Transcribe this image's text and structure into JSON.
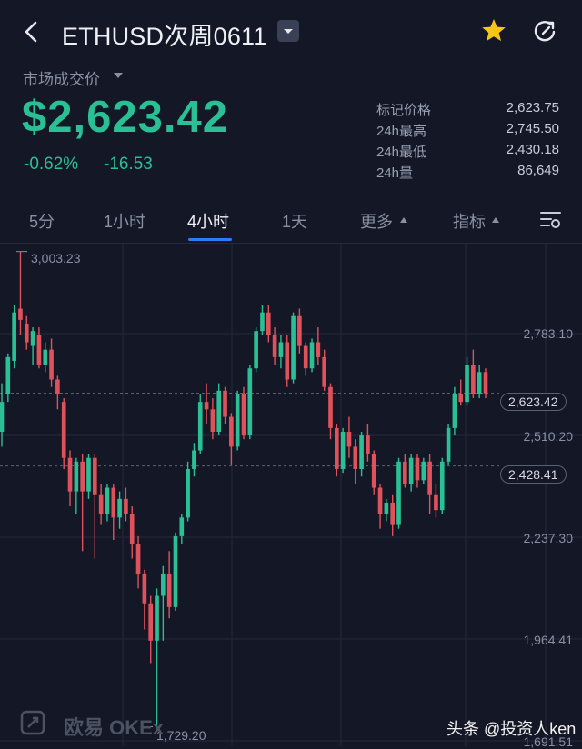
{
  "header": {
    "title": "ETHUSD次周0611",
    "price_label": "市场成交价",
    "last_price": "$2,623.42",
    "change_pct": "-0.62%",
    "change_abs": "-16.53"
  },
  "stats": [
    {
      "label": "标记价格",
      "value": "2,623.75"
    },
    {
      "label": "24h最高",
      "value": "2,745.50"
    },
    {
      "label": "24h最低",
      "value": "2,430.18"
    },
    {
      "label": "24h量",
      "value": "86,649"
    }
  ],
  "tabs": [
    {
      "label": "5分",
      "active": false
    },
    {
      "label": "1小时",
      "active": false
    },
    {
      "label": "4小时",
      "active": true
    },
    {
      "label": "1天",
      "active": false
    },
    {
      "label": "更多",
      "active": false
    },
    {
      "label": "指标",
      "active": false
    }
  ],
  "colors": {
    "up": "#2bbf95",
    "down": "#e0525b",
    "background": "#141826",
    "accent": "#2d7cf6",
    "star": "#f5c518"
  },
  "icons": [
    "back-arrow-icon",
    "dropdown-caret-icon",
    "star-icon",
    "refresh-icon",
    "chart-settings-icon",
    "okex-logo-icon"
  ],
  "chart_data": {
    "type": "candlestick",
    "y_ticks": [
      "2,783.10",
      "2,510.20",
      "2,237.30",
      "1,964.41",
      "1,691.51"
    ],
    "y_tick_values": [
      2783.1,
      2510.2,
      2237.3,
      1964.41,
      1691.51
    ],
    "high_marker": "3,003.23",
    "low_marker": "1,729.20",
    "last_price_tag": "2,623.42",
    "reference_tag": "2,428.41",
    "candles": [
      [
        2520,
        2600,
        2480,
        2650
      ],
      [
        2620,
        2720,
        2600,
        2730
      ],
      [
        2710,
        2840,
        2690,
        2860
      ],
      [
        2850,
        2820,
        2780,
        3003
      ],
      [
        2810,
        2760,
        2740,
        2830
      ],
      [
        2750,
        2790,
        2700,
        2800
      ],
      [
        2780,
        2700,
        2690,
        2800
      ],
      [
        2700,
        2740,
        2680,
        2760
      ],
      [
        2740,
        2660,
        2640,
        2770
      ],
      [
        2660,
        2620,
        2580,
        2670
      ],
      [
        2600,
        2450,
        2420,
        2610
      ],
      [
        2450,
        2360,
        2320,
        2470
      ],
      [
        2360,
        2440,
        2300,
        2450
      ],
      [
        2440,
        2360,
        2200,
        2460
      ],
      [
        2360,
        2450,
        2340,
        2460
      ],
      [
        2450,
        2350,
        2180,
        2460
      ],
      [
        2350,
        2300,
        2270,
        2380
      ],
      [
        2300,
        2370,
        2280,
        2380
      ],
      [
        2370,
        2290,
        2230,
        2380
      ],
      [
        2290,
        2340,
        2260,
        2360
      ],
      [
        2340,
        2300,
        2280,
        2370
      ],
      [
        2300,
        2220,
        2180,
        2320
      ],
      [
        2220,
        2140,
        2100,
        2240
      ],
      [
        2140,
        2060,
        1990,
        2150
      ],
      [
        2060,
        1960,
        1900,
        2080
      ],
      [
        1960,
        2080,
        1729,
        2100
      ],
      [
        2080,
        2140,
        1960,
        2160
      ],
      [
        2140,
        2050,
        2020,
        2200
      ],
      [
        2050,
        2240,
        2040,
        2250
      ],
      [
        2240,
        2290,
        2220,
        2300
      ],
      [
        2290,
        2420,
        2280,
        2440
      ],
      [
        2420,
        2470,
        2400,
        2490
      ],
      [
        2470,
        2600,
        2460,
        2620
      ],
      [
        2600,
        2580,
        2540,
        2650
      ],
      [
        2580,
        2520,
        2500,
        2610
      ],
      [
        2520,
        2630,
        2510,
        2650
      ],
      [
        2630,
        2560,
        2540,
        2640
      ],
      [
        2560,
        2480,
        2430,
        2570
      ],
      [
        2480,
        2620,
        2470,
        2630
      ],
      [
        2620,
        2510,
        2500,
        2640
      ],
      [
        2510,
        2690,
        2500,
        2700
      ],
      [
        2690,
        2790,
        2680,
        2800
      ],
      [
        2790,
        2840,
        2780,
        2860
      ],
      [
        2840,
        2780,
        2760,
        2860
      ],
      [
        2780,
        2720,
        2700,
        2800
      ],
      [
        2720,
        2760,
        2690,
        2780
      ],
      [
        2760,
        2660,
        2640,
        2780
      ],
      [
        2660,
        2830,
        2650,
        2840
      ],
      [
        2830,
        2750,
        2730,
        2850
      ],
      [
        2750,
        2690,
        2670,
        2760
      ],
      [
        2690,
        2760,
        2680,
        2770
      ],
      [
        2760,
        2720,
        2700,
        2800
      ],
      [
        2720,
        2640,
        2630,
        2740
      ],
      [
        2640,
        2530,
        2500,
        2650
      ],
      [
        2530,
        2420,
        2400,
        2540
      ],
      [
        2420,
        2520,
        2410,
        2530
      ],
      [
        2520,
        2480,
        2450,
        2560
      ],
      [
        2480,
        2420,
        2380,
        2500
      ],
      [
        2420,
        2510,
        2400,
        2520
      ],
      [
        2510,
        2460,
        2440,
        2540
      ],
      [
        2460,
        2370,
        2350,
        2470
      ],
      [
        2370,
        2300,
        2260,
        2380
      ],
      [
        2300,
        2330,
        2280,
        2340
      ],
      [
        2330,
        2270,
        2240,
        2350
      ],
      [
        2270,
        2440,
        2260,
        2450
      ],
      [
        2440,
        2380,
        2370,
        2460
      ],
      [
        2380,
        2450,
        2360,
        2460
      ],
      [
        2450,
        2390,
        2370,
        2460
      ],
      [
        2390,
        2440,
        2380,
        2450
      ],
      [
        2440,
        2350,
        2300,
        2460
      ],
      [
        2350,
        2310,
        2290,
        2380
      ],
      [
        2310,
        2440,
        2300,
        2450
      ],
      [
        2440,
        2530,
        2430,
        2540
      ],
      [
        2530,
        2620,
        2510,
        2640
      ],
      [
        2620,
        2600,
        2590,
        2660
      ],
      [
        2600,
        2700,
        2590,
        2720
      ],
      [
        2700,
        2620,
        2610,
        2740
      ],
      [
        2620,
        2680,
        2610,
        2700
      ],
      [
        2680,
        2623,
        2610,
        2690
      ]
    ]
  },
  "footer": {
    "logo_text": "欧易 OKEx",
    "watermark": "头条 @投资人ken"
  }
}
